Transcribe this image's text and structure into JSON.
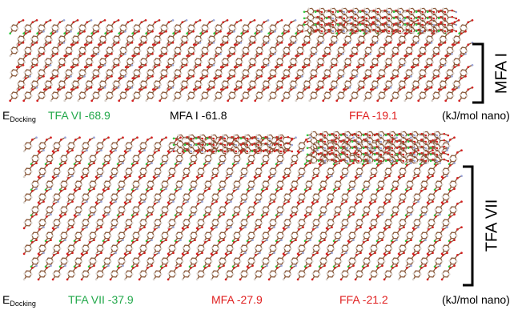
{
  "colors": {
    "carbon": "#8a5a3c",
    "oxygen": "#d42020",
    "nitrogen": "#9aa4d8",
    "hydrogen": "#d9d2cc",
    "chlorine": "#2ecc40",
    "tfa_text": "#22a84a",
    "mfa_text_top": "#000000",
    "mfa_text_bottom": "#e02020",
    "ffa_text": "#e02020"
  },
  "top_panel": {
    "edocking_main": "E",
    "edocking_sub": "Docking",
    "items": [
      {
        "label": "TFA VI -68.9",
        "color": "#22a84a"
      },
      {
        "label": "MFA I -61.8",
        "color": "#000000"
      },
      {
        "label": "FFA -19.1",
        "color": "#e02020"
      }
    ],
    "unit": "(kJ/mol nano)",
    "bracket_label": "MFA I"
  },
  "bottom_panel": {
    "edocking_main": "E",
    "edocking_sub": "Docking",
    "items": [
      {
        "label": "TFA VII -37.9",
        "color": "#22a84a"
      },
      {
        "label": "MFA -27.9",
        "color": "#e02020"
      },
      {
        "label": "FFA -21.2",
        "color": "#e02020"
      }
    ],
    "unit": "(kJ/mol nano)",
    "bracket_label": "TFA VII"
  }
}
